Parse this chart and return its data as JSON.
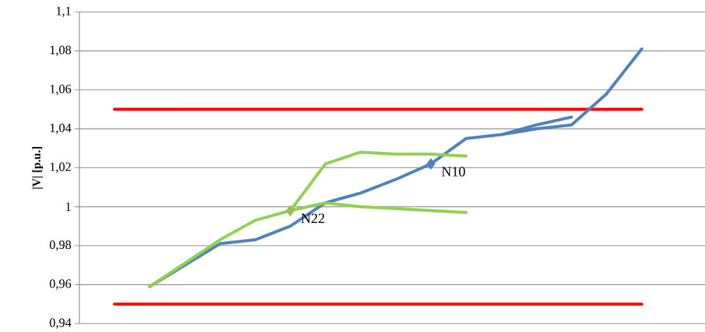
{
  "chart_data": {
    "type": "line",
    "ylabel": "|V| [p.u.]",
    "categories": [
      null,
      null,
      null,
      null,
      null,
      null,
      null,
      null,
      null,
      null,
      null,
      null,
      null,
      null,
      null
    ],
    "ylim": [
      0.94,
      1.1
    ],
    "yticks": [
      {
        "value": 0.94,
        "label": "0,94"
      },
      {
        "value": 0.96,
        "label": "0,96"
      },
      {
        "value": 0.98,
        "label": "0,98"
      },
      1,
      {
        "value": 1.02,
        "label": "1,02"
      },
      {
        "value": 1.04,
        "label": "1,04"
      },
      {
        "value": 1.06,
        "label": "1,06"
      },
      {
        "value": 1.08,
        "label": "1,08"
      },
      {
        "value": 1.1,
        "label": "1,1"
      }
    ],
    "grid": "y",
    "legend": false,
    "marker": "none",
    "line_style": "solid",
    "ref_lines": [
      {
        "axis": "y",
        "value": 1.05,
        "color": "#ff0000"
      },
      {
        "axis": "y",
        "value": 0.95,
        "color": "#ff0000"
      }
    ],
    "series": [
      {
        "color": "#4f81bd",
        "values": [
          0.959,
          0.97,
          0.981,
          0.983,
          0.99,
          1.002,
          1.007,
          1.014,
          1.022,
          1.035,
          1.037,
          1.04,
          1.042,
          1.058,
          1.081
        ]
      },
      {
        "color": "#4f81bd",
        "values": [
          null,
          null,
          null,
          null,
          null,
          null,
          null,
          null,
          null,
          null,
          1.037,
          1.042,
          1.046,
          null,
          null
        ]
      },
      {
        "color": "#92d050",
        "values": [
          0.959,
          0.971,
          0.983,
          0.993,
          0.998,
          1.022,
          1.028,
          1.027,
          1.027,
          1.026,
          null,
          null,
          null,
          null,
          null
        ]
      },
      {
        "color": "#92d050",
        "values": [
          null,
          null,
          null,
          null,
          0.998,
          1.002,
          1.0,
          0.999,
          0.998,
          0.997,
          null,
          null,
          null,
          null,
          null
        ]
      },
      {
        "type": "scatter",
        "name": "N22",
        "color": "#9bbb59",
        "marker": "diamond",
        "values": [
          null,
          null,
          null,
          null,
          0.998,
          null,
          null,
          null,
          null,
          null,
          null,
          null,
          null,
          null,
          null
        ]
      },
      {
        "type": "scatter",
        "name": "N10",
        "color": "#4f81bd",
        "marker": "diamond",
        "values": [
          null,
          null,
          null,
          null,
          null,
          null,
          null,
          null,
          1.022,
          null,
          null,
          null,
          null,
          null,
          null
        ]
      }
    ]
  }
}
